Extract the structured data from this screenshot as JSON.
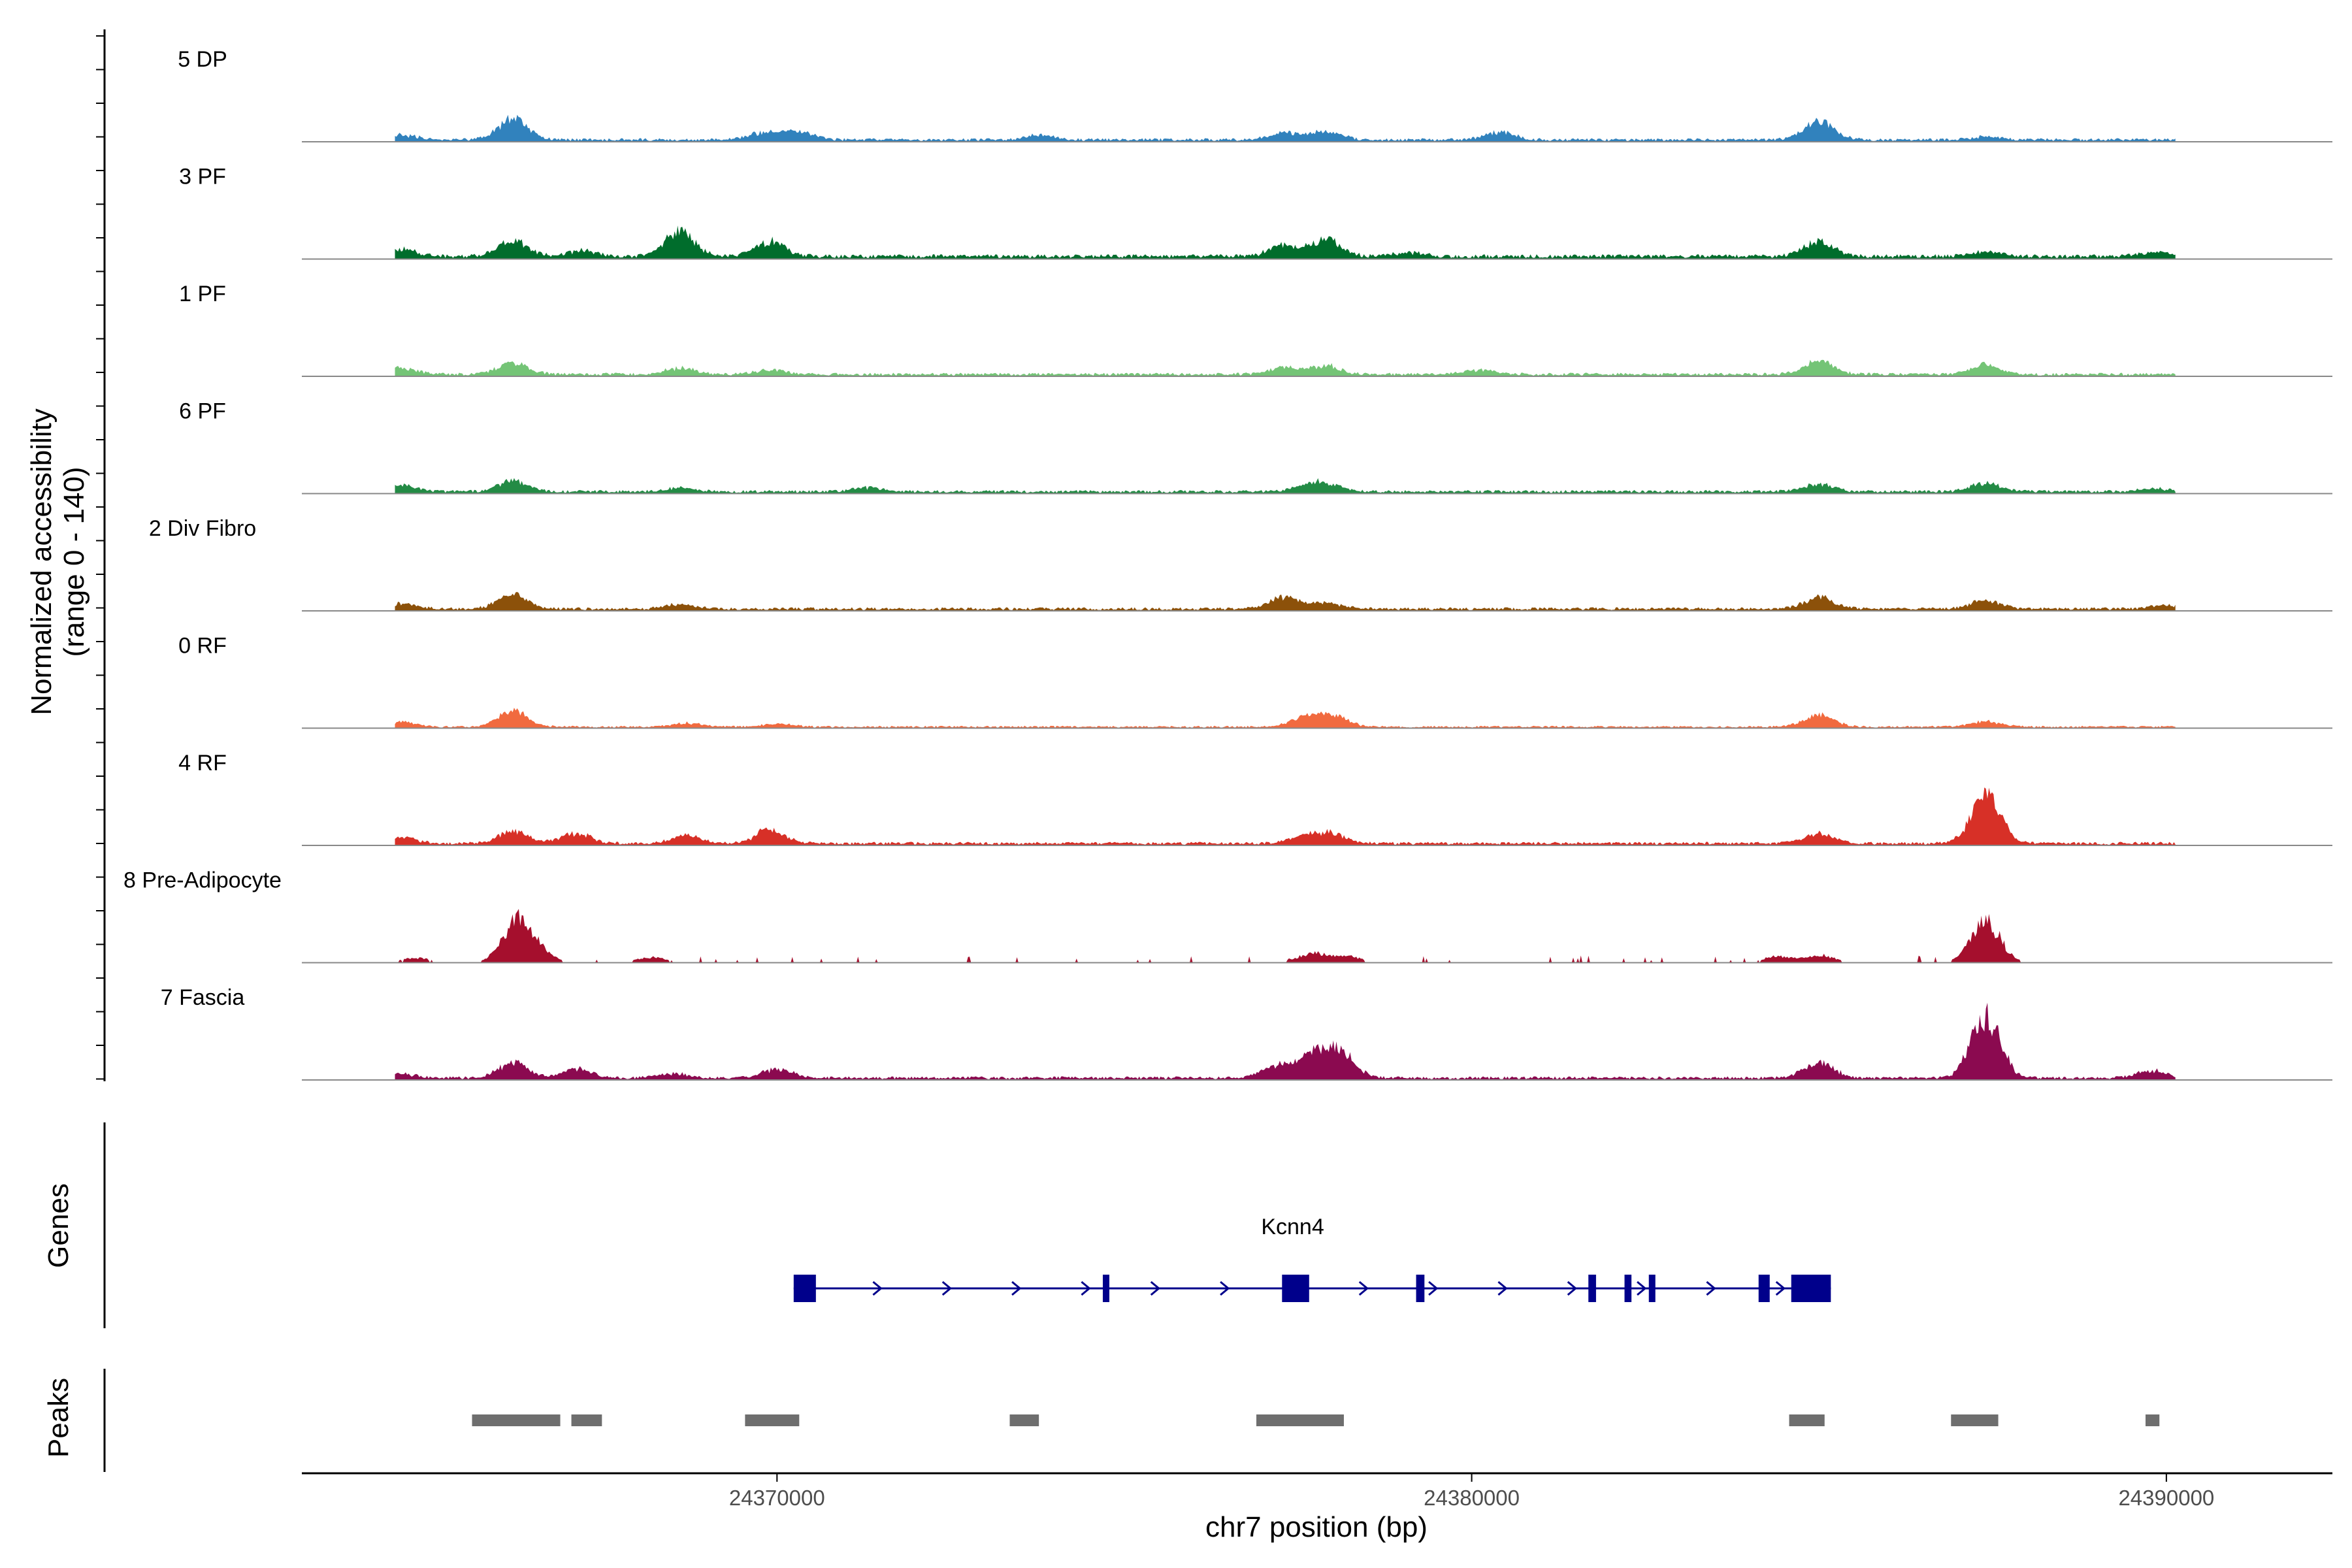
{
  "chart_data": {
    "type": "area",
    "title": "",
    "chromosome": "chr7",
    "xlabel": "chr7 position (bp)",
    "ylabel_line1": "Normalized accessibility",
    "ylabel_line2": "(range 0 - 140)",
    "y_range": [
      0,
      140
    ],
    "region": [
      24363160,
      24392390
    ],
    "data_start": 24364500,
    "data_end": 24390130,
    "x_ticks": [
      {
        "value": 24370000,
        "label": "24370000"
      },
      {
        "value": 24380000,
        "label": "24380000"
      },
      {
        "value": 24390000,
        "label": "24390000"
      }
    ],
    "tracks": [
      {
        "name": "5 DP",
        "color": "#3182bd",
        "baseline": 3,
        "peaks": [
          [
            24364600,
            6
          ],
          [
            24366200,
            28
          ],
          [
            24369800,
            9
          ],
          [
            24370300,
            11
          ],
          [
            24373800,
            6
          ],
          [
            24377300,
            9
          ],
          [
            24377900,
            11
          ],
          [
            24380400,
            10
          ],
          [
            24385000,
            25
          ],
          [
            24387400,
            4
          ]
        ]
      },
      {
        "name": "3 PF",
        "color": "#006d2c",
        "baseline": 4,
        "peaks": [
          [
            24364600,
            9
          ],
          [
            24366200,
            20
          ],
          [
            24367200,
            7
          ],
          [
            24368600,
            33
          ],
          [
            24369900,
            20
          ],
          [
            24377300,
            14
          ],
          [
            24377900,
            22
          ],
          [
            24379100,
            5
          ],
          [
            24385000,
            20
          ],
          [
            24387400,
            7
          ],
          [
            24389800,
            5
          ]
        ]
      },
      {
        "name": "1 PF",
        "color": "#74c476",
        "baseline": 3,
        "peaks": [
          [
            24364600,
            8
          ],
          [
            24366200,
            15
          ],
          [
            24368600,
            8
          ],
          [
            24369900,
            6
          ],
          [
            24377300,
            9
          ],
          [
            24377900,
            11
          ],
          [
            24380100,
            6
          ],
          [
            24385000,
            18
          ],
          [
            24387400,
            12
          ]
        ]
      },
      {
        "name": "6 PF",
        "color": "#238b45",
        "baseline": 3,
        "peaks": [
          [
            24364600,
            8
          ],
          [
            24366200,
            14
          ],
          [
            24368600,
            5
          ],
          [
            24371300,
            5
          ],
          [
            24377600,
            6
          ],
          [
            24377900,
            10
          ],
          [
            24385000,
            10
          ],
          [
            24387400,
            11
          ],
          [
            24389800,
            4
          ]
        ]
      },
      {
        "name": "2 Div Fibro",
        "color": "#8c510a",
        "baseline": 3,
        "peaks": [
          [
            24364600,
            7
          ],
          [
            24366200,
            19
          ],
          [
            24368600,
            6
          ],
          [
            24377300,
            15
          ],
          [
            24377900,
            8
          ],
          [
            24385000,
            15
          ],
          [
            24387400,
            11
          ],
          [
            24390000,
            5
          ]
        ]
      },
      {
        "name": "0 RF",
        "color": "#f16a3f",
        "baseline": 2,
        "peaks": [
          [
            24364600,
            6
          ],
          [
            24366200,
            20
          ],
          [
            24368700,
            5
          ],
          [
            24370000,
            4
          ],
          [
            24377600,
            12
          ],
          [
            24378000,
            15
          ],
          [
            24385000,
            15
          ],
          [
            24387400,
            7
          ]
        ]
      },
      {
        "name": "4 RF",
        "color": "#d73027",
        "baseline": 3,
        "peaks": [
          [
            24364600,
            7
          ],
          [
            24366200,
            16
          ],
          [
            24367100,
            14
          ],
          [
            24368700,
            10
          ],
          [
            24369900,
            18
          ],
          [
            24377600,
            10
          ],
          [
            24378000,
            12
          ],
          [
            24385000,
            13
          ],
          [
            24387400,
            60
          ]
        ]
      },
      {
        "name": "8 Pre-Adipocyte",
        "color": "#a50f2d",
        "baseline": 0,
        "peaks": [
          [
            24364800,
            6
          ],
          [
            24366100,
            7
          ],
          [
            24366300,
            50
          ],
          [
            24366600,
            8
          ],
          [
            24368200,
            7
          ],
          [
            24377700,
            12
          ],
          [
            24378200,
            8
          ],
          [
            24384400,
            8
          ],
          [
            24385000,
            10
          ],
          [
            24387400,
            52
          ]
        ]
      },
      {
        "name": "7 Fascia",
        "color": "#8b0a50",
        "baseline": 3,
        "peaks": [
          [
            24364600,
            5
          ],
          [
            24366200,
            19
          ],
          [
            24367100,
            12
          ],
          [
            24368500,
            6
          ],
          [
            24370000,
            12
          ],
          [
            24377200,
            16
          ],
          [
            24377700,
            30
          ],
          [
            24378100,
            33
          ],
          [
            24385000,
            20
          ],
          [
            24387400,
            80
          ],
          [
            24389800,
            10
          ]
        ]
      }
    ],
    "genes": [
      {
        "name": "Kcnn4",
        "start": 24370240,
        "end": 24385170,
        "strand": "+",
        "exons": [
          [
            24370240,
            24370560
          ],
          [
            24374690,
            24374760
          ],
          [
            24377270,
            24377660
          ],
          [
            24379200,
            24379320
          ],
          [
            24381680,
            24381790
          ],
          [
            24382200,
            24382300
          ],
          [
            24382550,
            24382620
          ],
          [
            24384130,
            24384290
          ],
          [
            24384600,
            24385170
          ]
        ]
      }
    ],
    "peak_regions": [
      [
        24365610,
        24366880
      ],
      [
        24367040,
        24367480
      ],
      [
        24369540,
        24370320
      ],
      [
        24373350,
        24373770
      ],
      [
        24376900,
        24378160
      ],
      [
        24384570,
        24385080
      ],
      [
        24386900,
        24387580
      ],
      [
        24389700,
        24389900
      ]
    ],
    "panels": [
      {
        "name": "coverage",
        "ylabel": "Normalized accessibility (range 0 - 140)"
      },
      {
        "name": "genes",
        "ylabel": "Genes"
      },
      {
        "name": "peaks",
        "ylabel": "Peaks"
      }
    ]
  }
}
